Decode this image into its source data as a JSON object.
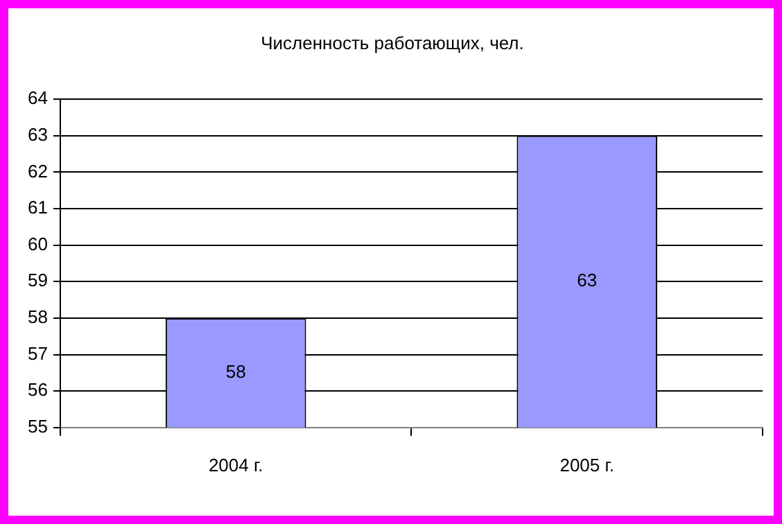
{
  "chart_data": {
    "type": "bar",
    "title": "Численность работающих, чел.",
    "categories": [
      "2004 г.",
      "2005 г."
    ],
    "values": [
      58,
      63
    ],
    "color": "#9999ff",
    "ylim": [
      55,
      64
    ],
    "yticks": [
      55,
      56,
      57,
      58,
      59,
      60,
      61,
      62,
      63,
      64
    ],
    "grid": "y",
    "data_labels": true,
    "legend": false
  }
}
